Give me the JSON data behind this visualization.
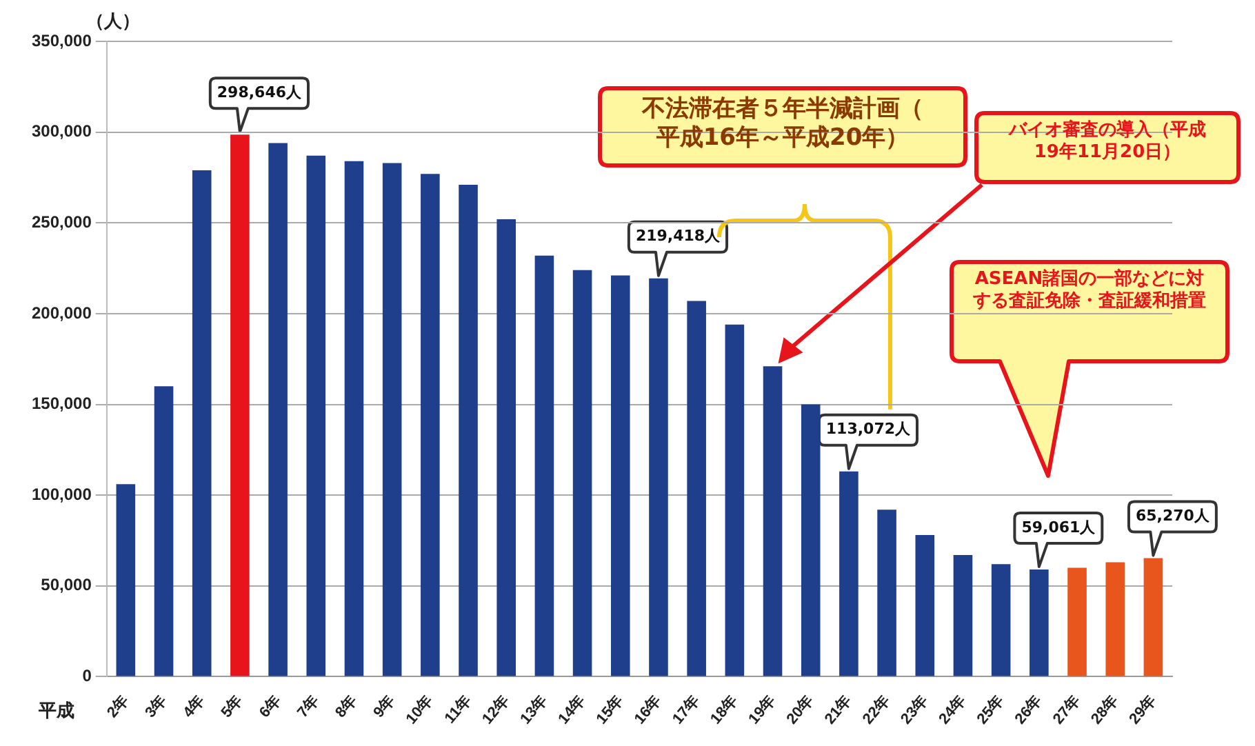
{
  "chart_data": {
    "type": "bar",
    "ylabel": "（人）",
    "xlabel": "平成",
    "categories": [
      "2年",
      "3年",
      "4年",
      "5年",
      "6年",
      "7年",
      "8年",
      "9年",
      "10年",
      "11年",
      "12年",
      "13年",
      "14年",
      "15年",
      "16年",
      "17年",
      "18年",
      "19年",
      "20年",
      "21年",
      "22年",
      "23年",
      "24年",
      "25年",
      "26年",
      "27年",
      "28年",
      "29年"
    ],
    "values": [
      106000,
      160000,
      279000,
      298646,
      294000,
      287000,
      284000,
      283000,
      277000,
      271000,
      252000,
      232000,
      224000,
      221000,
      219418,
      207000,
      194000,
      171000,
      150000,
      113072,
      92000,
      78000,
      67000,
      62000,
      59061,
      60000,
      63000,
      65270
    ],
    "colors": [
      "#1f3e8c",
      "#1f3e8c",
      "#1f3e8c",
      "#e8141c",
      "#1f3e8c",
      "#1f3e8c",
      "#1f3e8c",
      "#1f3e8c",
      "#1f3e8c",
      "#1f3e8c",
      "#1f3e8c",
      "#1f3e8c",
      "#1f3e8c",
      "#1f3e8c",
      "#1f3e8c",
      "#1f3e8c",
      "#1f3e8c",
      "#1f3e8c",
      "#1f3e8c",
      "#1f3e8c",
      "#1f3e8c",
      "#1f3e8c",
      "#1f3e8c",
      "#1f3e8c",
      "#1f3e8c",
      "#e8561e",
      "#e8561e",
      "#e8561e"
    ],
    "value_labels": [
      null,
      null,
      null,
      "298,646人",
      null,
      null,
      null,
      null,
      null,
      null,
      null,
      null,
      null,
      null,
      "219,418人",
      null,
      null,
      null,
      null,
      "113,072人",
      null,
      null,
      null,
      null,
      "59,061人",
      null,
      null,
      "65,270人"
    ],
    "ylim": [
      0,
      350000
    ],
    "yticks": [
      {
        "value": 0,
        "label": "0"
      },
      {
        "value": 50000,
        "label": "50,000"
      },
      {
        "value": 100000,
        "label": "100,000"
      },
      {
        "value": 150000,
        "label": "150,000"
      },
      {
        "value": 200000,
        "label": "200,000"
      },
      {
        "value": 250000,
        "label": "250,000"
      },
      {
        "value": 300000,
        "label": "300,000"
      },
      {
        "value": 350000,
        "label": "350,000"
      }
    ],
    "grid": "y",
    "legend": false,
    "annotations": [
      "不法滞在者５年半減計画（平成16年～平成20年）",
      "バイオ審査の導入（平成19年11月20日）",
      "ASEAN諸国の一部などに対する査証免除・査証緩和措置"
    ]
  }
}
